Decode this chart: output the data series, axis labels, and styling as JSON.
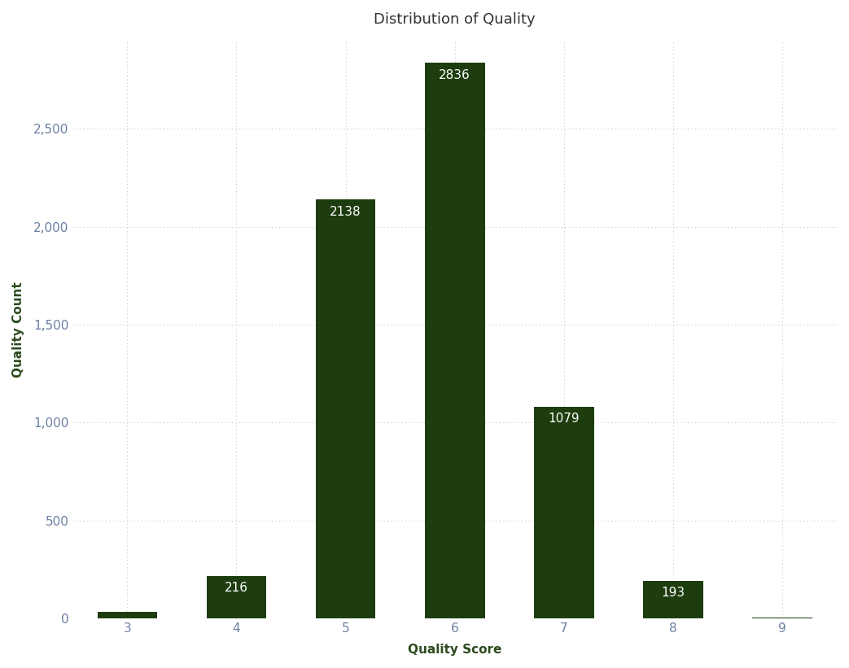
{
  "title": "Distribution of Quality",
  "xlabel": "Quality Score",
  "ylabel": "Quality Count",
  "categories": [
    3,
    4,
    5,
    6,
    7,
    8,
    9
  ],
  "values": [
    35,
    216,
    2138,
    2836,
    1079,
    193,
    5
  ],
  "bar_color": "#1e3d0f",
  "label_color": "#ffffff",
  "tick_label_color": "#6b7fa3",
  "axis_label_color": "#2d4a1e",
  "title_color": "#333333",
  "background_color": "#ffffff",
  "grid_color": "#c8c8c8",
  "ylim": [
    0,
    2950
  ],
  "yticks": [
    0,
    500,
    1000,
    1500,
    2000,
    2500
  ],
  "bar_width": 0.55,
  "title_fontsize": 13,
  "axis_label_fontsize": 11,
  "tick_fontsize": 11,
  "annotation_fontsize": 11
}
